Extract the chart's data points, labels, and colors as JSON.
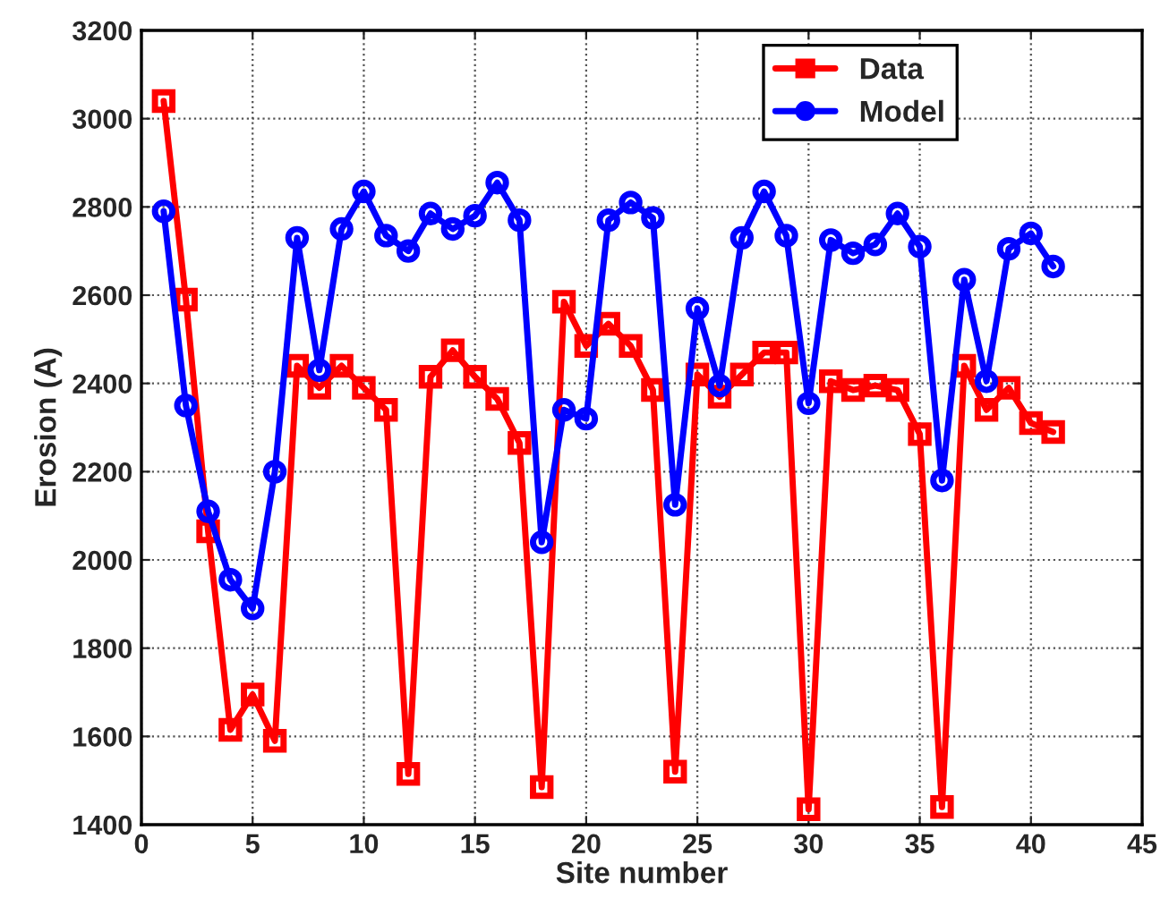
{
  "chart_data": {
    "type": "line",
    "xlabel": "Site number",
    "ylabel": "Erosion (A)",
    "x": [
      1,
      2,
      3,
      4,
      5,
      6,
      7,
      8,
      9,
      10,
      11,
      12,
      13,
      14,
      15,
      16,
      17,
      18,
      19,
      20,
      21,
      22,
      23,
      24,
      25,
      26,
      27,
      28,
      29,
      30,
      31,
      32,
      33,
      34,
      35,
      36,
      37,
      38,
      39,
      40,
      41
    ],
    "series": [
      {
        "name": "Data",
        "color": "#ff0000",
        "marker": "square",
        "values": [
          3040,
          2590,
          2065,
          1615,
          1695,
          1590,
          2440,
          2390,
          2440,
          2390,
          2340,
          1515,
          2415,
          2475,
          2415,
          2365,
          2265,
          1485,
          2585,
          2485,
          2535,
          2485,
          2385,
          1520,
          2420,
          2370,
          2420,
          2470,
          2470,
          1435,
          2405,
          2385,
          2395,
          2385,
          2285,
          1440,
          2440,
          2340,
          2390,
          2310,
          2290
        ]
      },
      {
        "name": "Model",
        "color": "#0000ff",
        "marker": "circle",
        "values": [
          2790,
          2350,
          2110,
          1955,
          1890,
          2200,
          2730,
          2430,
          2750,
          2835,
          2735,
          2700,
          2785,
          2750,
          2780,
          2855,
          2770,
          2040,
          2340,
          2320,
          2770,
          2810,
          2775,
          2125,
          2570,
          2395,
          2730,
          2835,
          2735,
          2355,
          2725,
          2695,
          2715,
          2785,
          2710,
          2180,
          2635,
          2405,
          2705,
          2740,
          2665
        ]
      }
    ],
    "xlim": [
      0,
      45
    ],
    "xticks": [
      0,
      5,
      10,
      15,
      20,
      25,
      30,
      35,
      40,
      45
    ],
    "ylim": [
      1400,
      3200
    ],
    "yticks": [
      1400,
      1600,
      1800,
      2000,
      2200,
      2400,
      2600,
      2800,
      3000,
      3200
    ],
    "grid": true,
    "legend": "top right",
    "line_style": "solid"
  }
}
